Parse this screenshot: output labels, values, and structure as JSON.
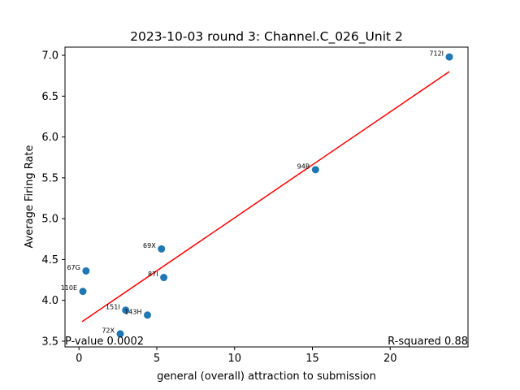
{
  "chart_data": {
    "type": "scatter",
    "title": "2023-10-03 round 3: Channel.C_026_Unit 2",
    "xlabel": "general (overall) attraction to submission",
    "ylabel": "Average Firing Rate",
    "xlim": [
      -0.9,
      25.0
    ],
    "ylim": [
      3.43,
      7.1
    ],
    "xticks": [
      0,
      5,
      10,
      15,
      20
    ],
    "yticks": [
      3.5,
      4.0,
      4.5,
      5.0,
      5.5,
      6.0,
      6.5,
      7.0
    ],
    "xtick_labels": [
      "0",
      "5",
      "10",
      "15",
      "20"
    ],
    "ytick_labels": [
      "3.5",
      "4.0",
      "4.5",
      "5.0",
      "5.5",
      "6.0",
      "6.5",
      "7.0"
    ],
    "points": [
      {
        "label": "712I",
        "x": 23.8,
        "y": 6.98
      },
      {
        "label": "94B",
        "x": 15.2,
        "y": 5.6
      },
      {
        "label": "69X",
        "x": 5.3,
        "y": 4.63
      },
      {
        "label": "87I",
        "x": 5.45,
        "y": 4.28
      },
      {
        "label": "67G",
        "x": 0.45,
        "y": 4.36
      },
      {
        "label": "110E",
        "x": 0.25,
        "y": 4.11
      },
      {
        "label": "151I",
        "x": 3.0,
        "y": 3.88
      },
      {
        "label": "143H",
        "x": 4.4,
        "y": 3.82
      },
      {
        "label": "72X",
        "x": 2.65,
        "y": 3.59
      }
    ],
    "fit_line": {
      "x": [
        0.2,
        23.8
      ],
      "y": [
        3.74,
        6.8
      ]
    },
    "point_color": "#1f77b4",
    "line_color": "#ff0000",
    "grid": false,
    "p_value_text": "P-value 0.0002",
    "r_squared_text": "R-squared 0.88"
  }
}
